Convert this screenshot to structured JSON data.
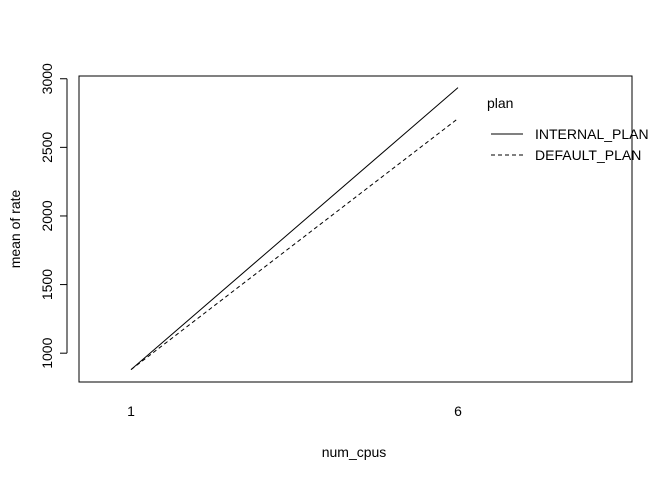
{
  "chart_data": {
    "type": "line",
    "xlabel": "num_cpus",
    "ylabel": "mean of  rate",
    "x_categories": [
      "1",
      "6"
    ],
    "yticks": [
      1000,
      1500,
      2000,
      2500,
      3000
    ],
    "ylim": [
      790,
      3020
    ],
    "legend": {
      "title": "plan",
      "placement": "top-right"
    },
    "series": [
      {
        "name": "INTERNAL_PLAN",
        "line_style": "solid",
        "values": [
          880,
          2935
        ]
      },
      {
        "name": "DEFAULT_PLAN",
        "line_style": "dashed",
        "values": [
          880,
          2710
        ]
      }
    ],
    "color": "#000000"
  }
}
